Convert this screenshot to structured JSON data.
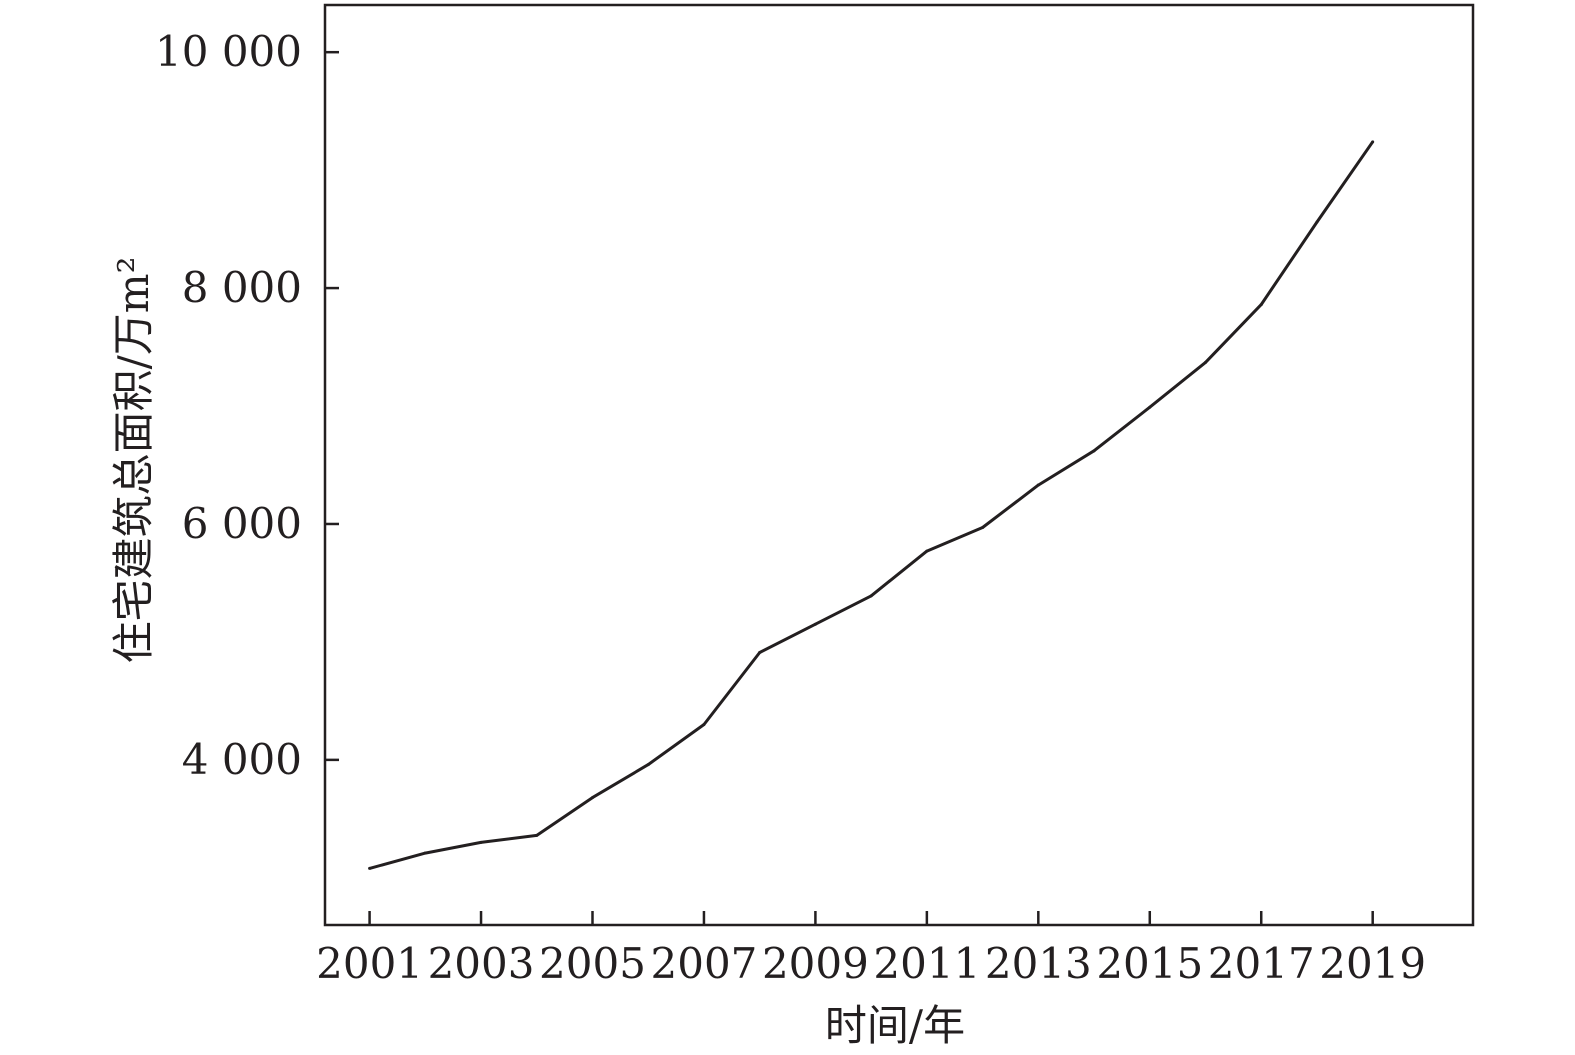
{
  "chart_data": {
    "type": "line",
    "title": "",
    "xlabel": "时间/年",
    "ylabel": "住宅建筑总面积/万m²",
    "xlim": [
      2000.2,
      2020.8
    ],
    "ylim": [
      2600,
      10400
    ],
    "x_ticks": [
      2001,
      2003,
      2005,
      2007,
      2009,
      2011,
      2013,
      2015,
      2017,
      2019
    ],
    "y_ticks": [
      4000,
      6000,
      8000,
      10000
    ],
    "y_tick_labels": [
      "4 000",
      "6 000",
      "8 000",
      "10 000"
    ],
    "grid": false,
    "series": [
      {
        "x": [
          2001,
          2002,
          2003,
          2004,
          2005,
          2006,
          2007,
          2008,
          2009,
          2010,
          2011,
          2012,
          2013,
          2014,
          2015,
          2016,
          2017,
          2018,
          2019
        ],
        "values": [
          3080,
          3210,
          3300,
          3360,
          3680,
          3960,
          4300,
          4910,
          5150,
          5390,
          5770,
          5970,
          6330,
          6620,
          6990,
          7370,
          7860,
          8560,
          9240
        ]
      }
    ],
    "line_color": "#231f20"
  }
}
